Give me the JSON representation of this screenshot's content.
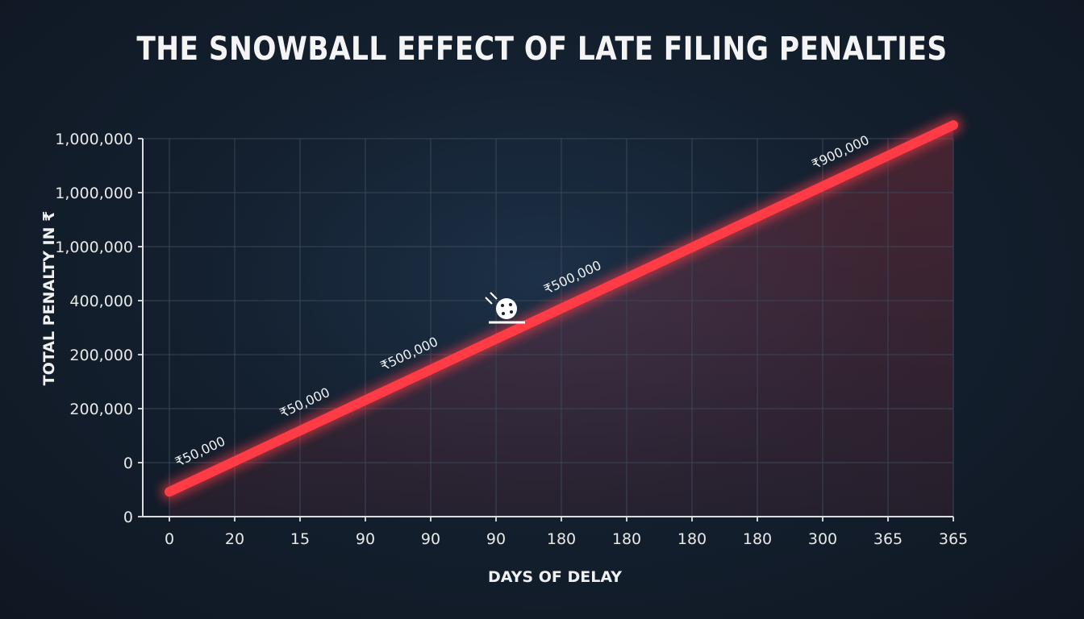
{
  "chart_data": {
    "type": "line",
    "title": "THE SNOWBALL EFFECT OF LATE FILING PENALTIES",
    "xlabel": "DAYS OF DELAY",
    "ylabel": "TOTAL PENALTY IN ₹",
    "x_tick_labels": [
      "0",
      "20",
      "15",
      "90",
      "90",
      "90",
      "180",
      "180",
      "180",
      "180",
      "300",
      "365",
      "365"
    ],
    "y_tick_labels": [
      "0",
      "0",
      "200,000",
      "200,000",
      "400,000",
      "1,000,000",
      "1,000,000",
      "1,000,000"
    ],
    "grid": true,
    "series": [
      {
        "x_index": [
          0,
          12
        ],
        "y_index": [
          0.46,
          7.25
        ]
      }
    ],
    "annotations": [
      {
        "text": "₹50,000",
        "x_index": 0.5
      },
      {
        "text": "₹50,000",
        "x_index": 2.1
      },
      {
        "text": "₹500,000",
        "x_index": 3.7
      },
      {
        "text": "₹500,000",
        "x_index": 6.2
      },
      {
        "text": "₹900,000",
        "x_index": 10.3
      }
    ],
    "icon": "snowball-icon",
    "colors": {
      "line": "#ff3b46",
      "background": "#14202f",
      "grid": "#3a4656"
    }
  }
}
